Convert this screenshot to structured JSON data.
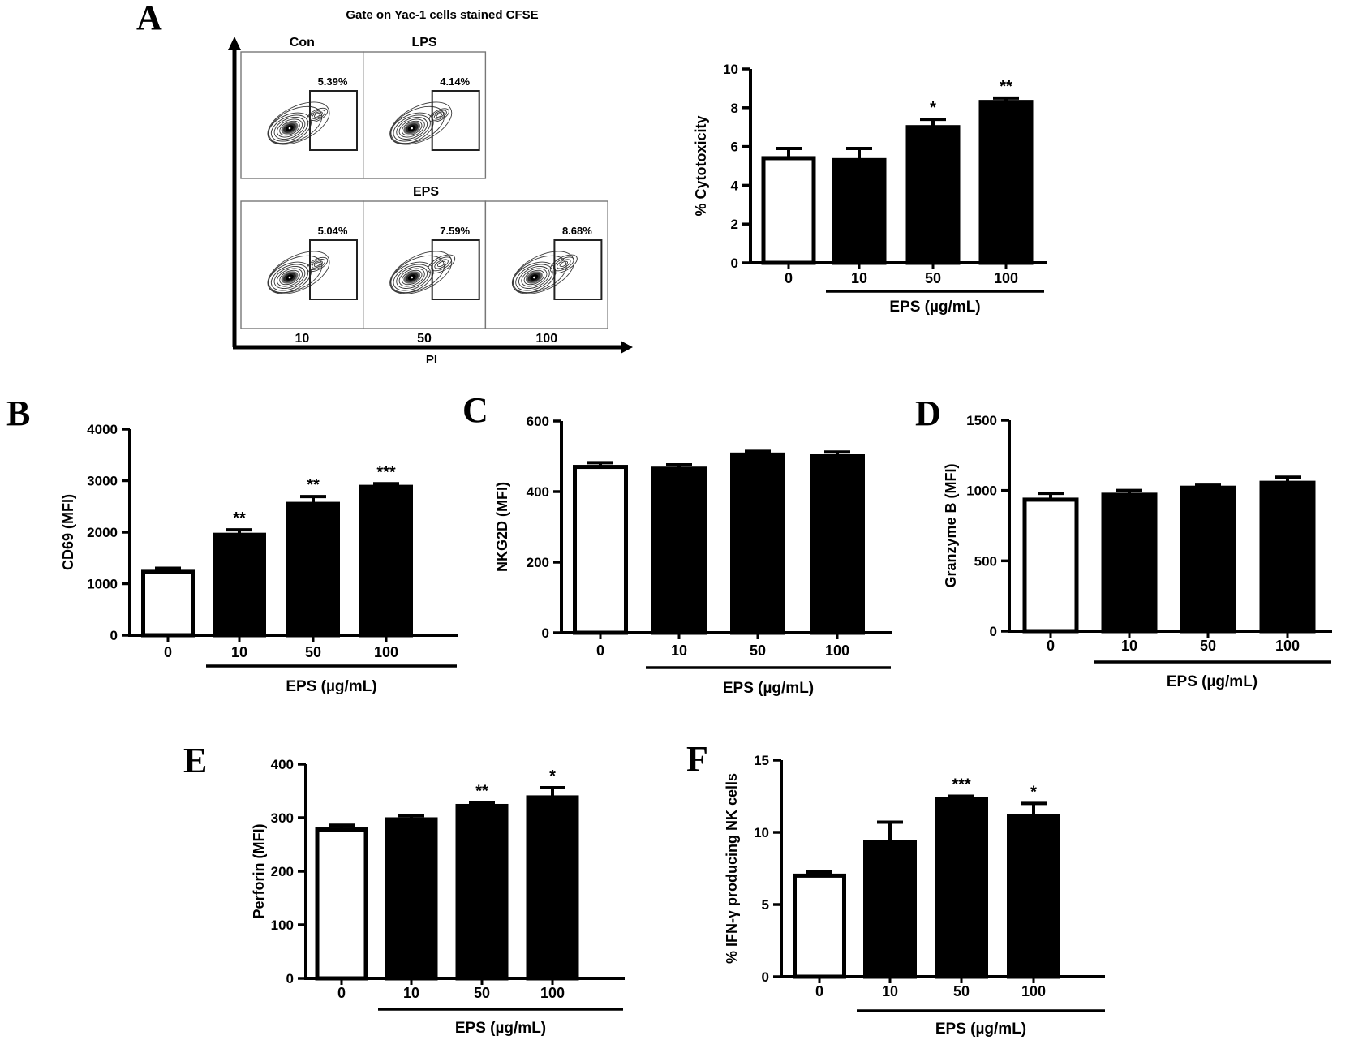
{
  "panels": {
    "a": "A",
    "b": "B",
    "c": "C",
    "d": "D",
    "e": "E",
    "f": "F"
  },
  "flow": {
    "title": "Gate on Yac-1 cells stained CFSE",
    "x_axis_label": "PI",
    "group_label": "EPS",
    "plots": [
      {
        "id": "con",
        "row": 0,
        "col": 0,
        "label": "Con",
        "percent": "5.39%"
      },
      {
        "id": "lps",
        "row": 0,
        "col": 1,
        "label": "LPS",
        "percent": "4.14%"
      },
      {
        "id": "eps-10",
        "row": 1,
        "col": 0,
        "label": "10",
        "percent": "5.04%"
      },
      {
        "id": "eps-50",
        "row": 1,
        "col": 1,
        "label": "50",
        "percent": "7.59%"
      },
      {
        "id": "eps-100",
        "row": 1,
        "col": 2,
        "label": "100",
        "percent": "8.68%"
      }
    ]
  },
  "chart_data": [
    {
      "id": "cytotoxicity",
      "panel": "A",
      "type": "bar",
      "ylabel": "% Cytotoxicity",
      "xlabel": "EPS (µg/mL)",
      "categories": [
        "0",
        "10",
        "50",
        "100"
      ],
      "values": [
        5.4,
        5.3,
        7.0,
        8.3
      ],
      "errors": [
        0.5,
        0.6,
        0.4,
        0.2
      ],
      "significance": [
        "",
        "",
        "*",
        "**"
      ],
      "bar_fills": [
        "white",
        "black",
        "black",
        "black"
      ],
      "ylim": [
        0,
        10
      ],
      "yticks": [
        0,
        2,
        4,
        6,
        8,
        10
      ],
      "grid": false,
      "legend": false
    },
    {
      "id": "cd69",
      "panel": "B",
      "type": "bar",
      "ylabel": "CD69 (MFI)",
      "xlabel": "EPS (µg/mL)",
      "categories": [
        "0",
        "10",
        "50",
        "100"
      ],
      "values": [
        1230,
        1950,
        2550,
        2880
      ],
      "errors": [
        70,
        95,
        140,
        60
      ],
      "significance": [
        "",
        "**",
        "**",
        "***"
      ],
      "bar_fills": [
        "white",
        "black",
        "black",
        "black"
      ],
      "ylim": [
        0,
        4000
      ],
      "yticks": [
        0,
        1000,
        2000,
        3000,
        4000
      ],
      "grid": false,
      "legend": false
    },
    {
      "id": "nkg2d",
      "panel": "C",
      "type": "bar",
      "ylabel": "NKG2D (MFI)",
      "xlabel": "EPS (µg/mL)",
      "categories": [
        "0",
        "10",
        "50",
        "100"
      ],
      "values": [
        470,
        465,
        505,
        500
      ],
      "errors": [
        12,
        11,
        9,
        12
      ],
      "significance": [
        "",
        "",
        "",
        ""
      ],
      "bar_fills": [
        "white",
        "black",
        "black",
        "black"
      ],
      "ylim": [
        0,
        600
      ],
      "yticks": [
        0,
        200,
        400,
        600
      ],
      "grid": false,
      "legend": false
    },
    {
      "id": "granzyme-b",
      "panel": "D",
      "type": "bar",
      "ylabel": "Granzyme B (MFI)",
      "xlabel": "EPS (µg/mL)",
      "categories": [
        "0",
        "10",
        "50",
        "100"
      ],
      "values": [
        935,
        970,
        1020,
        1055
      ],
      "errors": [
        45,
        30,
        18,
        40
      ],
      "significance": [
        "",
        "",
        "",
        ""
      ],
      "bar_fills": [
        "white",
        "black",
        "black",
        "black"
      ],
      "ylim": [
        0,
        1500
      ],
      "yticks": [
        0,
        500,
        1000,
        1500
      ],
      "grid": false,
      "legend": false
    },
    {
      "id": "perforin",
      "panel": "E",
      "type": "bar",
      "ylabel": "Perforin (MFI)",
      "xlabel": "EPS (µg/mL)",
      "categories": [
        "0",
        "10",
        "50",
        "100"
      ],
      "values": [
        278,
        297,
        322,
        338
      ],
      "errors": [
        8,
        7,
        6,
        18
      ],
      "significance": [
        "",
        "",
        "**",
        "*"
      ],
      "bar_fills": [
        "white",
        "black",
        "black",
        "black"
      ],
      "ylim": [
        0,
        400
      ],
      "yticks": [
        0,
        100,
        200,
        300,
        400
      ],
      "grid": false,
      "legend": false
    },
    {
      "id": "ifn-gamma",
      "panel": "F",
      "type": "bar",
      "ylabel": "% IFN-γ producing NK cells",
      "xlabel": "EPS (µg/mL)",
      "categories": [
        "0",
        "10",
        "50",
        "100"
      ],
      "values": [
        7.0,
        9.3,
        12.3,
        11.1
      ],
      "errors": [
        0.25,
        1.4,
        0.2,
        0.9
      ],
      "significance": [
        "",
        "",
        "***",
        "*"
      ],
      "bar_fills": [
        "white",
        "black",
        "black",
        "black"
      ],
      "ylim": [
        0,
        15
      ],
      "yticks": [
        0,
        5,
        10,
        15
      ],
      "grid": false,
      "legend": false
    }
  ]
}
